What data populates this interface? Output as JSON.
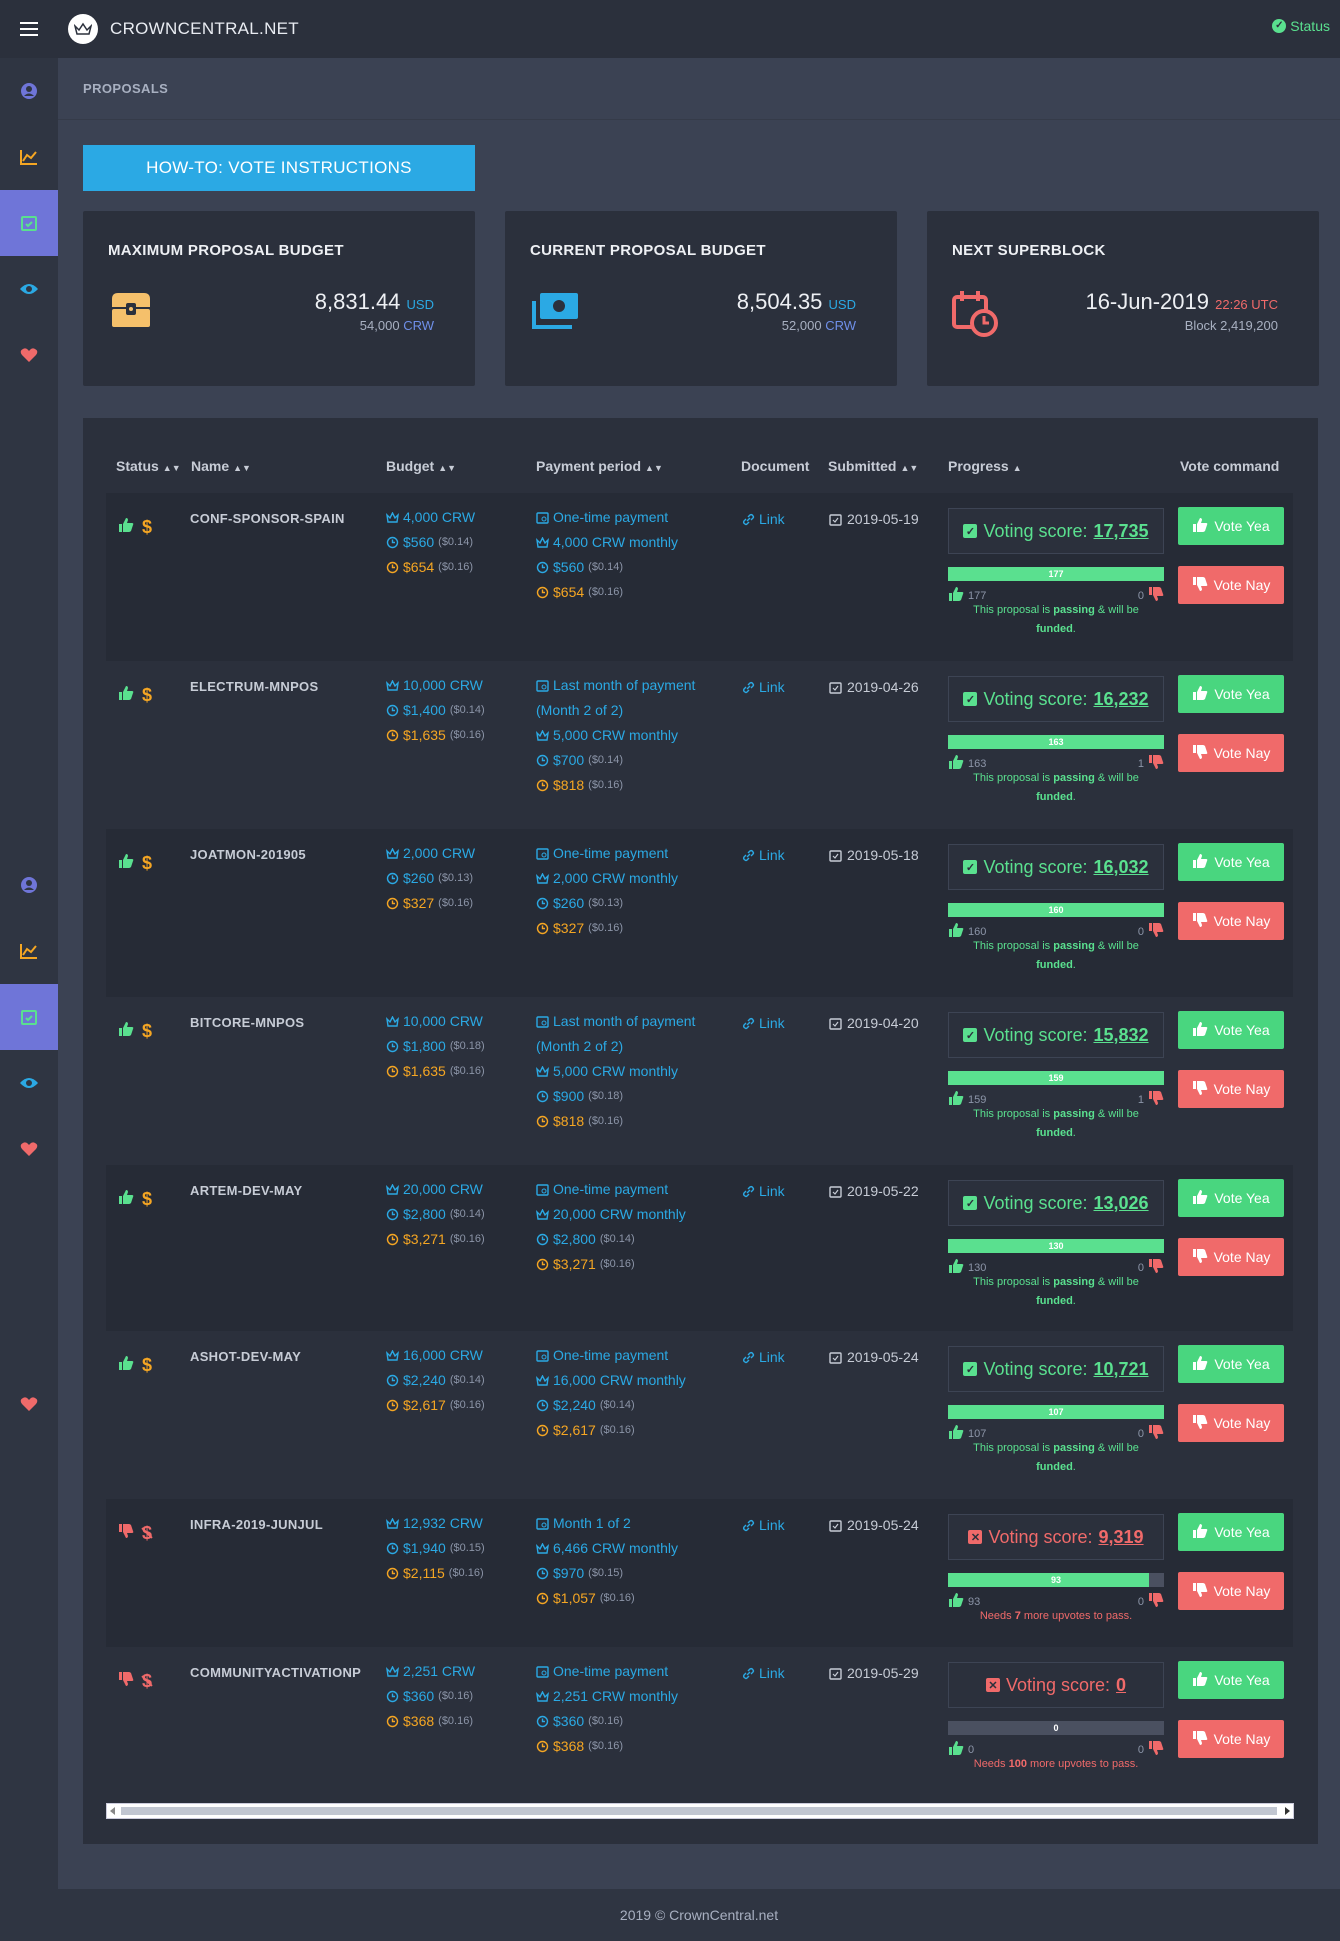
{
  "app": {
    "brand": "CROWNCENTRAL.NET",
    "status_label": "Status"
  },
  "breadcrumb": "PROPOSALS",
  "howto_label": "HOW-TO: VOTE INSTRUCTIONS",
  "cards": [
    {
      "title": "MAXIMUM PROPOSAL BUDGET",
      "main": "8,831.44",
      "main_unit": "USD",
      "sub": "54,000",
      "sub_unit": "CRW",
      "icon": "treasure-chest-icon"
    },
    {
      "title": "CURRENT PROPOSAL BUDGET",
      "main": "8,504.35",
      "main_unit": "USD",
      "sub": "52,000",
      "sub_unit": "CRW",
      "icon": "money-stack-icon"
    },
    {
      "title": "NEXT SUPERBLOCK",
      "main": "16-Jun-2019",
      "main_unit": "22:26 UTC",
      "sub": "Block 2,419,200",
      "sub_unit": "",
      "icon": "calendar-clock-icon"
    }
  ],
  "table": {
    "headers": {
      "status": "Status",
      "name": "Name",
      "budget": "Budget",
      "period": "Payment period",
      "document": "Document",
      "submitted": "Submitted",
      "progress": "Progress",
      "vote": "Vote command"
    },
    "vote_yea": "Vote Yea",
    "vote_nay": "Vote Nay",
    "score_label": "Voting score:",
    "rows": [
      {
        "name": "CONF-SPONSOR-SPAIN",
        "passing": true,
        "b1": "4,000 CRW",
        "b2": "$560",
        "b2s": "($0.14)",
        "b3": "$654",
        "b3s": "($0.16)",
        "p1": "One-time payment",
        "p1b": "",
        "p2": "4,000 CRW monthly",
        "p3": "$560",
        "p3s": "($0.14)",
        "p4": "$654",
        "p4s": "($0.16)",
        "doc": "Link",
        "date": "2019-05-19",
        "score": "17,735",
        "bar": "177",
        "up": "177",
        "down": "0",
        "note_a": "This proposal is ",
        "note_b": "passing",
        "note_c": " & will be ",
        "note_d": "funded",
        "note_e": "."
      },
      {
        "name": "ELECTRUM-MNPOS",
        "passing": true,
        "b1": "10,000 CRW",
        "b2": "$1,400",
        "b2s": "($0.14)",
        "b3": "$1,635",
        "b3s": "($0.16)",
        "p1": "Last month of payment",
        "p1b": "(Month 2 of 2)",
        "p2": "5,000 CRW monthly",
        "p3": "$700",
        "p3s": "($0.14)",
        "p4": "$818",
        "p4s": "($0.16)",
        "doc": "Link",
        "date": "2019-04-26",
        "score": "16,232",
        "bar": "163",
        "up": "163",
        "down": "1",
        "note_a": "This proposal is ",
        "note_b": "passing",
        "note_c": " & will be ",
        "note_d": "funded",
        "note_e": "."
      },
      {
        "name": "JOATMON-201905",
        "passing": true,
        "b1": "2,000 CRW",
        "b2": "$260",
        "b2s": "($0.13)",
        "b3": "$327",
        "b3s": "($0.16)",
        "p1": "One-time payment",
        "p1b": "",
        "p2": "2,000 CRW monthly",
        "p3": "$260",
        "p3s": "($0.13)",
        "p4": "$327",
        "p4s": "($0.16)",
        "doc": "Link",
        "date": "2019-05-18",
        "score": "16,032",
        "bar": "160",
        "up": "160",
        "down": "0",
        "note_a": "This proposal is ",
        "note_b": "passing",
        "note_c": " & will be ",
        "note_d": "funded",
        "note_e": "."
      },
      {
        "name": "BITCORE-MNPOS",
        "passing": true,
        "b1": "10,000 CRW",
        "b2": "$1,800",
        "b2s": "($0.18)",
        "b3": "$1,635",
        "b3s": "($0.16)",
        "p1": "Last month of payment",
        "p1b": "(Month 2 of 2)",
        "p2": "5,000 CRW monthly",
        "p3": "$900",
        "p3s": "($0.18)",
        "p4": "$818",
        "p4s": "($0.16)",
        "doc": "Link",
        "date": "2019-04-20",
        "score": "15,832",
        "bar": "159",
        "up": "159",
        "down": "1",
        "note_a": "This proposal is ",
        "note_b": "passing",
        "note_c": " & will be ",
        "note_d": "funded",
        "note_e": "."
      },
      {
        "name": "ARTEM-DEV-MAY",
        "passing": true,
        "b1": "20,000 CRW",
        "b2": "$2,800",
        "b2s": "($0.14)",
        "b3": "$3,271",
        "b3s": "($0.16)",
        "p1": "One-time payment",
        "p1b": "",
        "p2": "20,000 CRW monthly",
        "p3": "$2,800",
        "p3s": "($0.14)",
        "p4": "$3,271",
        "p4s": "($0.16)",
        "doc": "Link",
        "date": "2019-05-22",
        "score": "13,026",
        "bar": "130",
        "up": "130",
        "down": "0",
        "note_a": "This proposal is ",
        "note_b": "passing",
        "note_c": " & will be ",
        "note_d": "funded",
        "note_e": "."
      },
      {
        "name": "ASHOT-DEV-MAY",
        "passing": true,
        "b1": "16,000 CRW",
        "b2": "$2,240",
        "b2s": "($0.14)",
        "b3": "$2,617",
        "b3s": "($0.16)",
        "p1": "One-time payment",
        "p1b": "",
        "p2": "16,000 CRW monthly",
        "p3": "$2,240",
        "p3s": "($0.14)",
        "p4": "$2,617",
        "p4s": "($0.16)",
        "doc": "Link",
        "date": "2019-05-24",
        "score": "10,721",
        "bar": "107",
        "up": "107",
        "down": "0",
        "note_a": "This proposal is ",
        "note_b": "passing",
        "note_c": " & will be ",
        "note_d": "funded",
        "note_e": "."
      },
      {
        "name": "INFRA-2019-JUNJUL",
        "passing": false,
        "b1": "12,932 CRW",
        "b2": "$1,940",
        "b2s": "($0.15)",
        "b3": "$2,115",
        "b3s": "($0.16)",
        "p1": "Month 1 of 2",
        "p1b": "",
        "p2": "6,466 CRW monthly",
        "p3": "$970",
        "p3s": "($0.15)",
        "p4": "$1,057",
        "p4s": "($0.16)",
        "doc": "Link",
        "date": "2019-05-24",
        "score": "9,319",
        "bar": "93",
        "up": "93",
        "down": "0",
        "note_a": "Needs ",
        "note_b": "7",
        "note_c": " more upvotes to pass.",
        "note_d": "",
        "note_e": ""
      },
      {
        "name": "COMMUNITYACTIVATIONP",
        "passing": false,
        "b1": "2,251 CRW",
        "b2": "$360",
        "b2s": "($0.16)",
        "b3": "$368",
        "b3s": "($0.16)",
        "p1": "One-time payment",
        "p1b": "",
        "p2": "2,251 CRW monthly",
        "p3": "$360",
        "p3s": "($0.16)",
        "p4": "$368",
        "p4s": "($0.16)",
        "doc": "Link",
        "date": "2019-05-29",
        "score": "0",
        "bar": "0",
        "up": "0",
        "down": "0",
        "note_a": "Needs ",
        "note_b": "100",
        "note_c": " more upvotes to pass.",
        "note_d": "",
        "note_e": ""
      }
    ]
  },
  "footer": "2019 © CrownCentral.net",
  "colors": {
    "green": "#5ae08f",
    "red": "#f06a6a",
    "blue": "#2ba9e4",
    "orange": "#f5a623",
    "sidebar_active": "#6f75d8"
  }
}
